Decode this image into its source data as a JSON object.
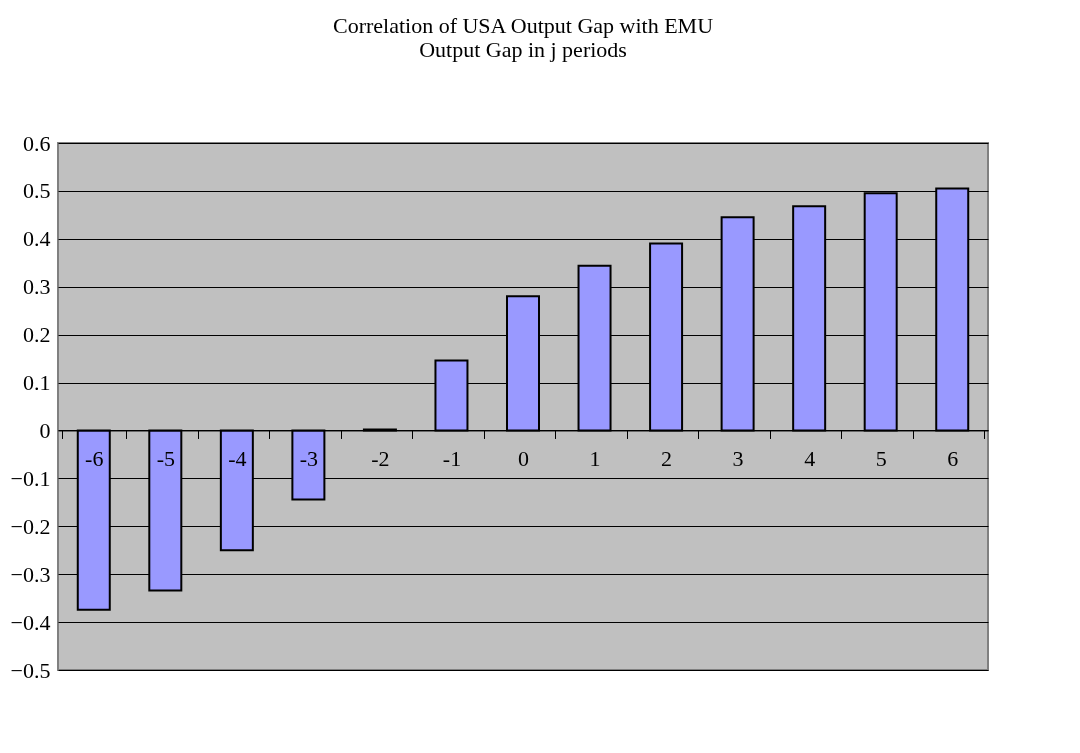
{
  "chart_data": {
    "type": "bar",
    "title": "Correlation of USA Output Gap with EMU Output Gap in j periods",
    "categories": [
      "-6",
      "-5",
      "-4",
      "-3",
      "-2",
      "-1",
      "0",
      "1",
      "2",
      "3",
      "4",
      "5",
      "6"
    ],
    "series": [
      {
        "color": "#9999ff",
        "values": [
          -0.374,
          -0.334,
          -0.25,
          -0.144,
          0.002,
          0.146,
          0.28,
          0.344,
          0.39,
          0.445,
          0.468,
          0.495,
          0.505
        ]
      }
    ],
    "ylim": [
      -0.5,
      0.6
    ],
    "yticks": [
      -0.5,
      -0.4,
      -0.3,
      -0.2,
      -0.1,
      0,
      0.1,
      0.2,
      0.3,
      0.4,
      0.5,
      0.6
    ],
    "grid": "y"
  }
}
